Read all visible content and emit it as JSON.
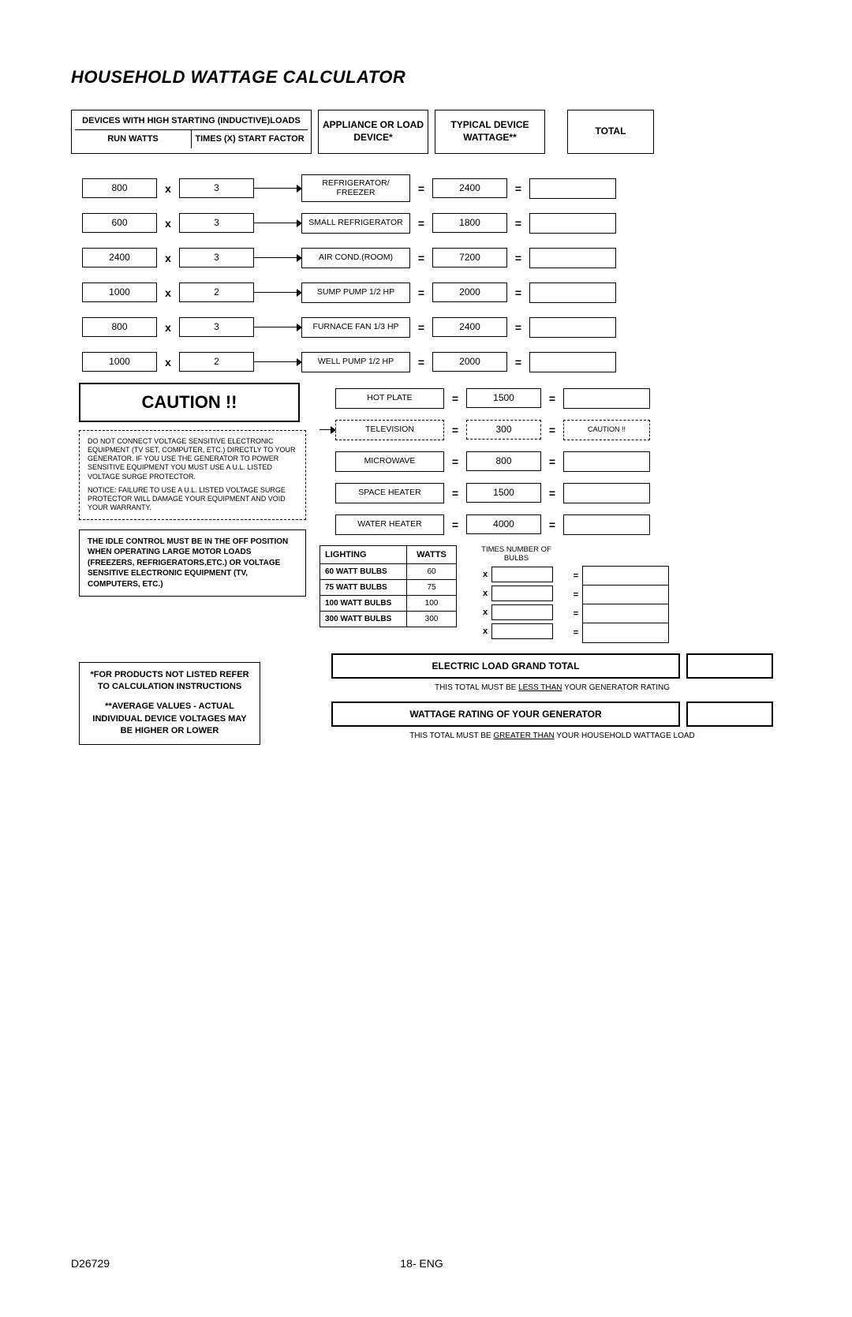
{
  "title": "HOUSEHOLD WATTAGE CALCULATOR",
  "headers": {
    "inductive": "DEVICES WITH HIGH STARTING (INDUCTIVE)LOADS",
    "run_watts": "RUN WATTS",
    "start_factor": "TIMES (X) START FACTOR",
    "appliance": "APPLIANCE OR LOAD DEVICE*",
    "wattage": "TYPICAL DEVICE WATTAGE**",
    "total": "TOTAL"
  },
  "inductive_rows": [
    {
      "run": "800",
      "factor": "3",
      "appl": "REFRIGERATOR/ FREEZER",
      "watt": "2400"
    },
    {
      "run": "600",
      "factor": "3",
      "appl": "SMALL REFRIGERATOR",
      "watt": "1800"
    },
    {
      "run": "2400",
      "factor": "3",
      "appl": "AIR COND.(ROOM)",
      "watt": "7200"
    },
    {
      "run": "1000",
      "factor": "2",
      "appl": "SUMP PUMP 1/2 HP",
      "watt": "2000"
    },
    {
      "run": "800",
      "factor": "3",
      "appl": "FURNACE FAN 1/3 HP",
      "watt": "2400"
    },
    {
      "run": "1000",
      "factor": "2",
      "appl": "WELL PUMP 1/2 HP",
      "watt": "2000"
    }
  ],
  "simple_rows": [
    {
      "appl": "HOT PLATE",
      "watt": "1500",
      "dashed": false
    },
    {
      "appl": "TELEVISION",
      "watt": "300",
      "dashed": true,
      "caution": "CAUTION !!"
    },
    {
      "appl": "MICROWAVE",
      "watt": "800",
      "dashed": false
    },
    {
      "appl": "SPACE HEATER",
      "watt": "1500",
      "dashed": false
    },
    {
      "appl": "WATER HEATER",
      "watt": "4000",
      "dashed": false
    }
  ],
  "caution_label": "CAUTION !!",
  "caution_text1": "DO NOT CONNECT VOLTAGE SENSITIVE ELECTRONIC EQUIPMENT (TV SET, COMPUTER, ETC.) DIRECTLY TO YOUR GENERATOR. IF YOU USE THE GENERATOR TO POWER SENSITIVE EQUIPMENT YOU MUST USE A U.L. LISTED VOLTAGE SURGE PROTECTOR.",
  "caution_text2": "NOTICE: FAILURE TO USE A U.L. LISTED VOLTAGE SURGE PROTECTOR WILL DAMAGE YOUR EQUIPMENT AND VOID YOUR WARRANTY.",
  "idle_note": "THE IDLE CONTROL MUST BE IN THE OFF POSITION WHEN OPERATING LARGE MOTOR LOADS (FREEZERS, REFRIGERATORS,ETC.) OR VOLTAGE SENSITIVE ELECTRONIC EQUIPMENT (TV, COMPUTERS, ETC.)",
  "lighting": {
    "header1": "LIGHTING",
    "header2": "WATTS",
    "times_bulbs": "TIMES NUMBER OF BULBS",
    "rows": [
      {
        "label": "60 WATT BULBS",
        "watts": "60"
      },
      {
        "label": "75 WATT BULBS",
        "watts": "75"
      },
      {
        "label": "100 WATT BULBS",
        "watts": "100"
      },
      {
        "label": "300 WATT BULBS",
        "watts": "300"
      }
    ]
  },
  "footnote1": "*FOR PRODUCTS NOT LISTED REFER TO CALCULATION INSTRUCTIONS",
  "footnote2": "**AVERAGE VALUES - ACTUAL INDIVIDUAL DEVICE VOLTAGES MAY BE HIGHER OR LOWER",
  "grand": {
    "load_label": "ELECTRIC LOAD GRAND TOTAL",
    "load_note_pre": "THIS TOTAL MUST BE ",
    "load_note_u": "LESS THAN",
    "load_note_post": " YOUR GENERATOR RATING",
    "gen_label": "WATTAGE RATING OF YOUR GENERATOR",
    "gen_note_pre": "THIS TOTAL MUST BE ",
    "gen_note_u": "GREATER THAN",
    "gen_note_post": " YOUR HOUSEHOLD WATTAGE LOAD"
  },
  "footer": {
    "left": "D26729",
    "center": "18- ENG"
  },
  "ops": {
    "times": "x",
    "equals": "="
  }
}
